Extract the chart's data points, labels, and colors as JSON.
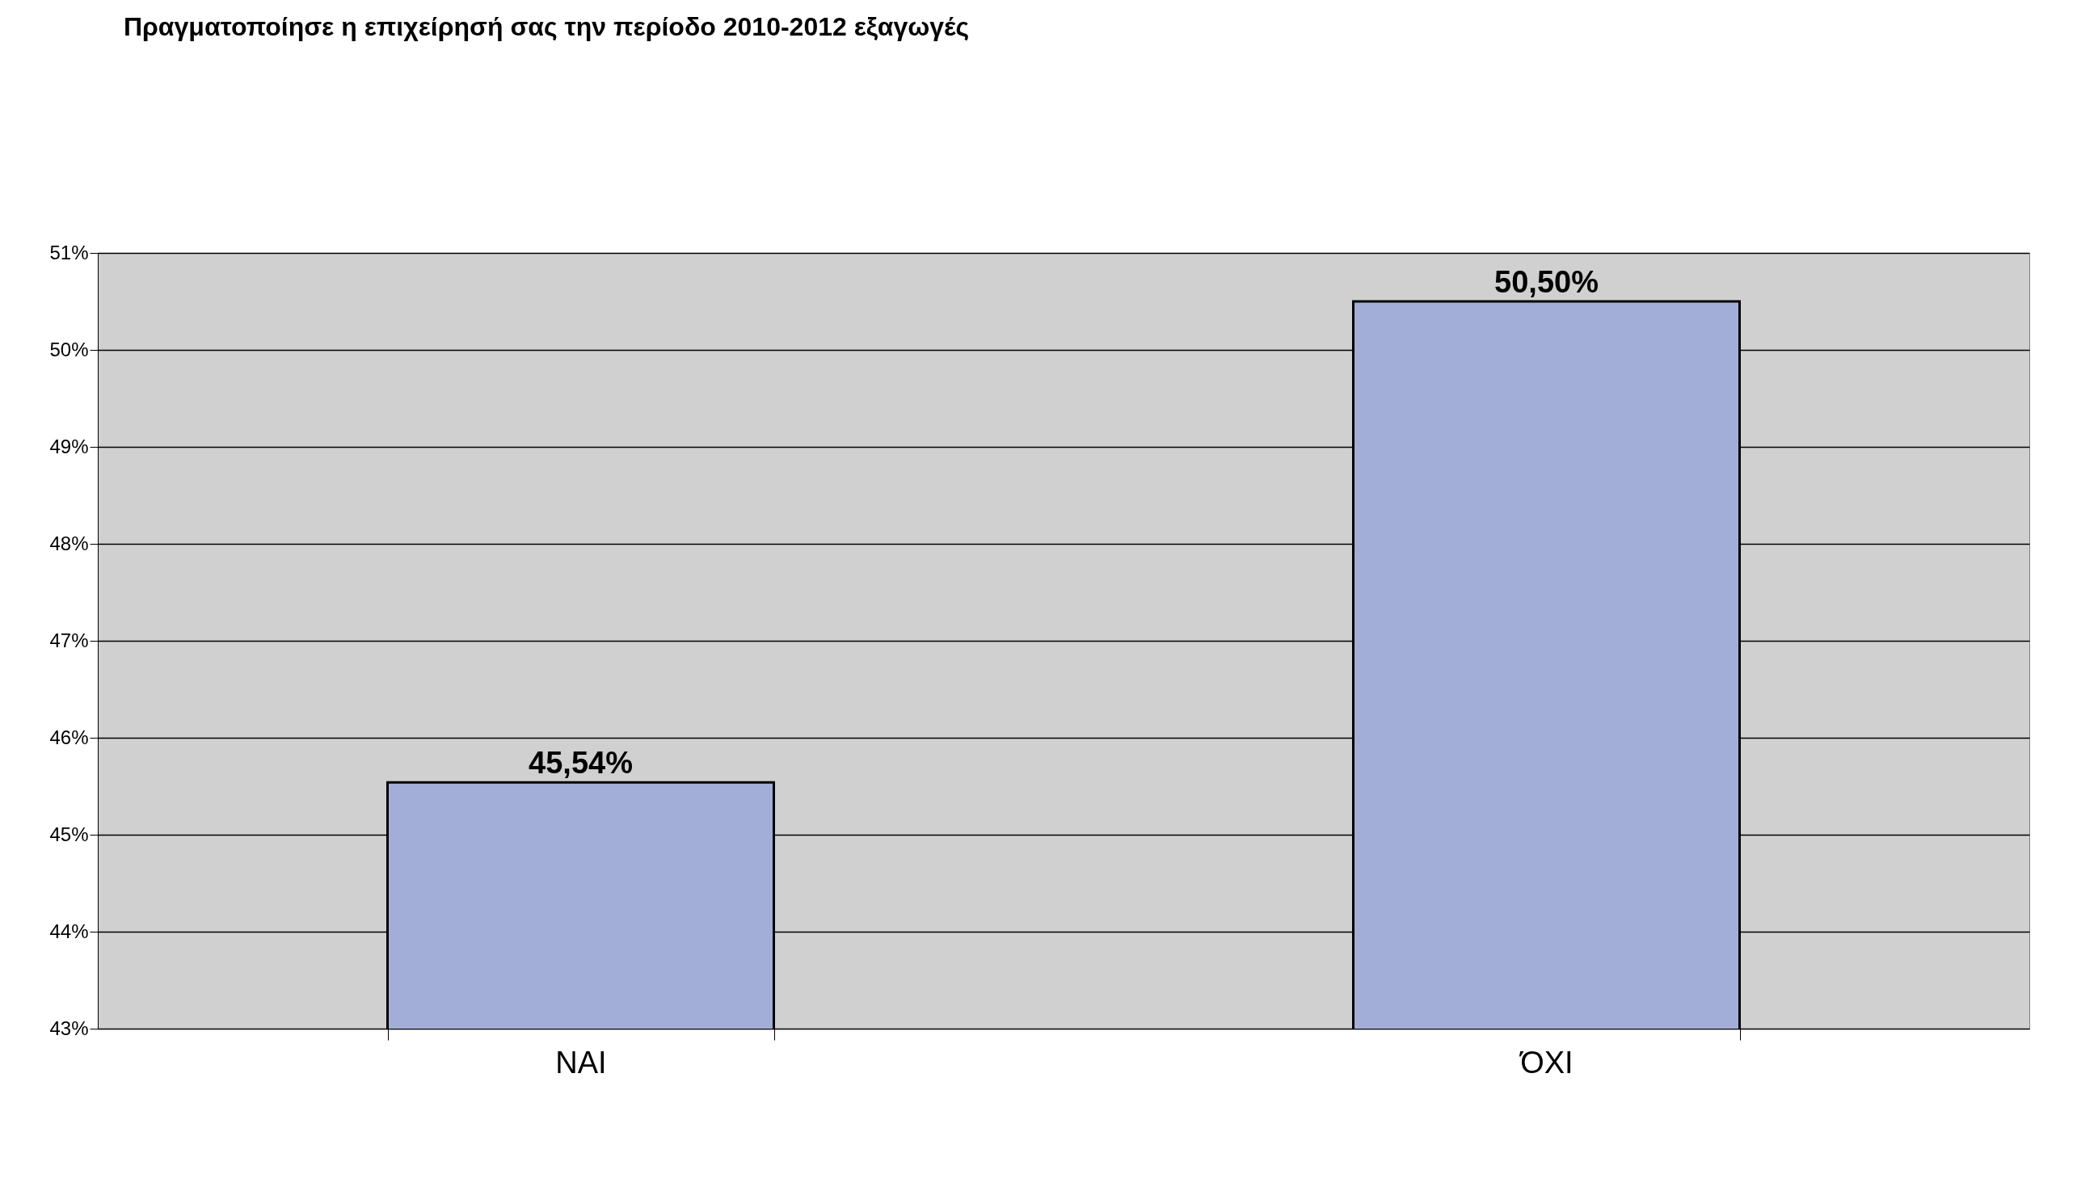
{
  "chart_data": {
    "type": "bar",
    "title": "Πραγματοποίησε η επιχείρησή σας την περίοδο 2010-2012 εξαγωγές",
    "categories": [
      "ΝΑΙ",
      "ΌΧΙ"
    ],
    "series": [
      {
        "color": "#a2aed8",
        "values": [
          45.54,
          50.5
        ],
        "value_labels": [
          "45,54%",
          "50,50%"
        ]
      }
    ],
    "ylim": [
      43,
      51
    ],
    "yticks": [
      {
        "value": 43,
        "label": "43%"
      },
      {
        "value": 44,
        "label": "44%"
      },
      {
        "value": 45,
        "label": "45%"
      },
      {
        "value": 46,
        "label": "46%"
      },
      {
        "value": 47,
        "label": "47%"
      },
      {
        "value": 48,
        "label": "48%"
      },
      {
        "value": 49,
        "label": "49%"
      },
      {
        "value": 50,
        "label": "50%"
      },
      {
        "value": 51,
        "label": "51%"
      }
    ],
    "grid": "y"
  }
}
